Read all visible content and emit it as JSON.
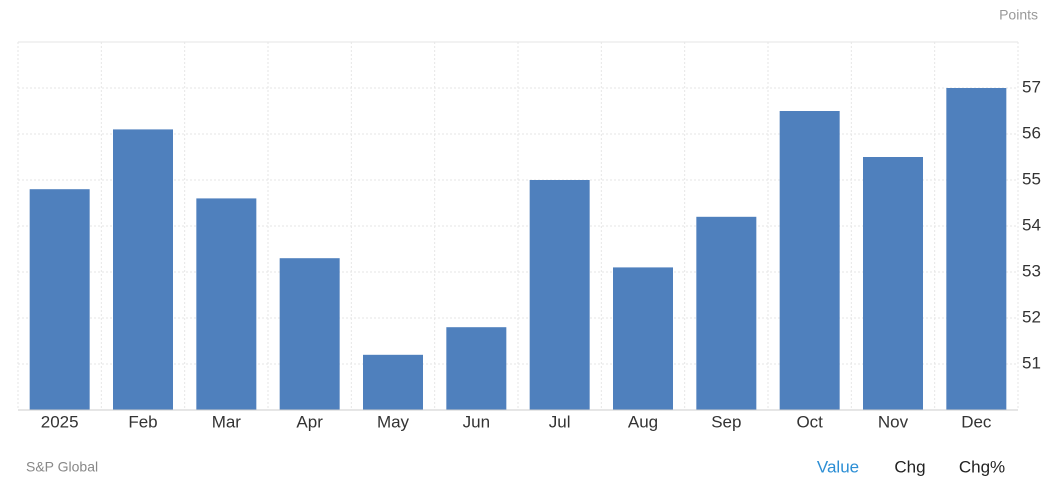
{
  "chart_data": {
    "type": "bar",
    "y_axis_label": "Points",
    "source": "S&P Global",
    "categories": [
      "2025",
      "Feb",
      "Mar",
      "Apr",
      "May",
      "Jun",
      "Jul",
      "Aug",
      "Sep",
      "Oct",
      "Nov",
      "Dec"
    ],
    "values": [
      54.8,
      56.1,
      54.6,
      53.3,
      51.2,
      51.8,
      55.0,
      53.1,
      54.2,
      56.5,
      55.5,
      57.0
    ],
    "color": "#4f80bd",
    "ylim": [
      50,
      58
    ],
    "yticks": [
      51,
      52,
      53,
      54,
      55,
      56,
      57
    ],
    "grid": true,
    "y_axis_side": "right"
  },
  "tabs": [
    "Value",
    "Chg",
    "Chg%"
  ],
  "active_tab": 0
}
